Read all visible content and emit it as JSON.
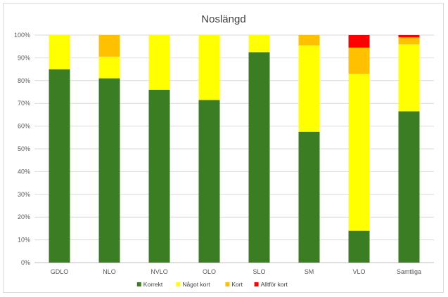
{
  "chart_data": {
    "type": "bar",
    "stacked": "percent",
    "title": "Noslängd",
    "categories": [
      "GDLO",
      "NLO",
      "NVLO",
      "OLO",
      "SLO",
      "SM",
      "VLO",
      "Samtliga"
    ],
    "series": [
      {
        "name": "Korrekt",
        "color": "#3a7d22",
        "values": [
          85,
          81,
          76,
          71.5,
          92.5,
          57.5,
          14,
          66.5
        ]
      },
      {
        "name": "Något kort",
        "color": "#ffff00",
        "values": [
          15,
          9.5,
          24,
          28.5,
          7.5,
          38,
          69,
          29.5
        ]
      },
      {
        "name": "Kort",
        "color": "#ffc000",
        "values": [
          0,
          9.5,
          0,
          0,
          0,
          4.5,
          11.5,
          3
        ]
      },
      {
        "name": "Alltför kort",
        "color": "#ff0000",
        "values": [
          0,
          0,
          0,
          0,
          0,
          0,
          5.5,
          1
        ]
      }
    ],
    "y_ticks": [
      "0%",
      "10%",
      "20%",
      "30%",
      "40%",
      "50%",
      "60%",
      "70%",
      "80%",
      "90%",
      "100%"
    ],
    "ylim": [
      0,
      100
    ],
    "grid": true,
    "legend_position": "bottom",
    "xlabel": "",
    "ylabel": ""
  }
}
